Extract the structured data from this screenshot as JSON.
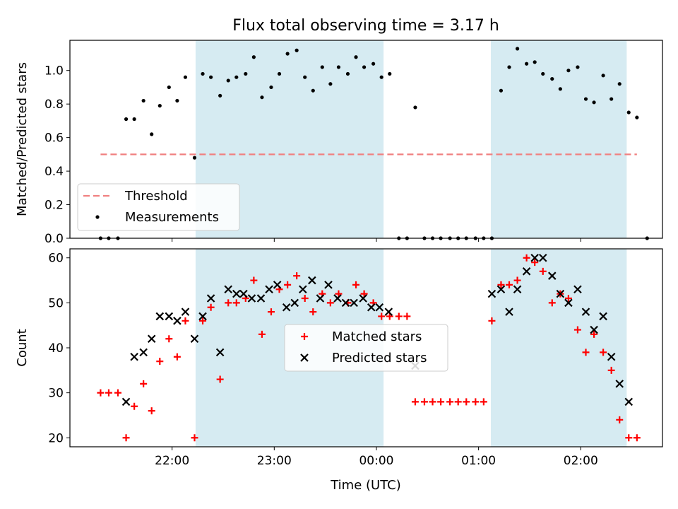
{
  "chart_data": {
    "type": "scatter",
    "title": "Flux total observing time = 3.17 h",
    "xlabel": "Time (UTC)",
    "x_unit": "hours after 00:00 UTC",
    "x_ticks": [
      {
        "value": -2,
        "label": "22:00"
      },
      {
        "value": -1,
        "label": "23:00"
      },
      {
        "value": 0,
        "label": "00:00"
      },
      {
        "value": 1,
        "label": "01:00"
      },
      {
        "value": 2,
        "label": "02:00"
      }
    ],
    "xlim": [
      -3.0,
      2.8
    ],
    "shaded_intervals": [
      [
        -1.77,
        0.07
      ],
      [
        1.12,
        2.45
      ]
    ],
    "shade_color": "#add8e6",
    "panels": [
      {
        "ylabel": "Matched/Predicted stars",
        "ylim": [
          0,
          1.18
        ],
        "y_ticks": [
          "0.0",
          "0.2",
          "0.4",
          "0.6",
          "0.8",
          "1.0"
        ],
        "y_tick_values": [
          0,
          0.2,
          0.4,
          0.6,
          0.8,
          1.0
        ],
        "threshold": {
          "name": "Threshold",
          "y": 0.5,
          "x_range": [
            -2.7,
            2.55
          ],
          "color": "#f08080"
        },
        "legend": {
          "placement": "lower-left",
          "entries": [
            "Threshold",
            "Measurements"
          ]
        },
        "series": [
          {
            "name": "Measurements",
            "color": "#000000",
            "marker": "dot",
            "points": [
              [
                -2.7,
                0.0
              ],
              [
                -2.62,
                0.0
              ],
              [
                -2.53,
                0.0
              ],
              [
                -2.45,
                0.71
              ],
              [
                -2.37,
                0.71
              ],
              [
                -2.28,
                0.82
              ],
              [
                -2.2,
                0.62
              ],
              [
                -2.12,
                0.79
              ],
              [
                -2.03,
                0.9
              ],
              [
                -1.95,
                0.82
              ],
              [
                -1.87,
                0.96
              ],
              [
                -1.78,
                0.48
              ],
              [
                -1.7,
                0.98
              ],
              [
                -1.62,
                0.96
              ],
              [
                -1.53,
                0.85
              ],
              [
                -1.45,
                0.94
              ],
              [
                -1.37,
                0.96
              ],
              [
                -1.28,
                0.98
              ],
              [
                -1.2,
                1.08
              ],
              [
                -1.12,
                0.84
              ],
              [
                -1.03,
                0.9
              ],
              [
                -0.95,
                0.98
              ],
              [
                -0.87,
                1.1
              ],
              [
                -0.78,
                1.12
              ],
              [
                -0.7,
                0.96
              ],
              [
                -0.62,
                0.88
              ],
              [
                -0.53,
                1.02
              ],
              [
                -0.45,
                0.92
              ],
              [
                -0.37,
                1.02
              ],
              [
                -0.28,
                0.98
              ],
              [
                -0.2,
                1.08
              ],
              [
                -0.12,
                1.02
              ],
              [
                -0.03,
                1.04
              ],
              [
                0.05,
                0.96
              ],
              [
                0.13,
                0.98
              ],
              [
                0.22,
                0.0
              ],
              [
                0.3,
                0.0
              ],
              [
                0.38,
                0.78
              ],
              [
                0.47,
                0.0
              ],
              [
                0.55,
                0.0
              ],
              [
                0.63,
                0.0
              ],
              [
                0.72,
                0.0
              ],
              [
                0.8,
                0.0
              ],
              [
                0.88,
                0.0
              ],
              [
                0.97,
                0.0
              ],
              [
                1.05,
                0.0
              ],
              [
                1.13,
                0.0
              ],
              [
                1.22,
                0.88
              ],
              [
                1.3,
                1.02
              ],
              [
                1.38,
                1.13
              ],
              [
                1.47,
                1.04
              ],
              [
                1.55,
                1.05
              ],
              [
                1.63,
                0.98
              ],
              [
                1.72,
                0.95
              ],
              [
                1.8,
                0.89
              ],
              [
                1.88,
                1.0
              ],
              [
                1.97,
                1.02
              ],
              [
                2.05,
                0.83
              ],
              [
                2.13,
                0.81
              ],
              [
                2.22,
                0.97
              ],
              [
                2.3,
                0.83
              ],
              [
                2.38,
                0.92
              ],
              [
                2.47,
                0.75
              ],
              [
                2.55,
                0.72
              ],
              [
                2.65,
                0.0
              ]
            ]
          }
        ]
      },
      {
        "ylabel": "Count",
        "ylim": [
          18,
          62
        ],
        "y_ticks": [
          "20",
          "30",
          "40",
          "50",
          "60"
        ],
        "y_tick_values": [
          20,
          30,
          40,
          50,
          60
        ],
        "legend": {
          "placement": "center",
          "entries": [
            "Matched stars",
            "Predicted stars"
          ]
        },
        "series": [
          {
            "name": "Matched stars",
            "color": "#ff0000",
            "marker": "plus",
            "points": [
              [
                -2.7,
                30
              ],
              [
                -2.62,
                30
              ],
              [
                -2.53,
                30
              ],
              [
                -2.45,
                20
              ],
              [
                -2.37,
                27
              ],
              [
                -2.28,
                32
              ],
              [
                -2.2,
                26
              ],
              [
                -2.12,
                37
              ],
              [
                -2.03,
                42
              ],
              [
                -1.95,
                38
              ],
              [
                -1.87,
                46
              ],
              [
                -1.78,
                20
              ],
              [
                -1.7,
                46
              ],
              [
                -1.62,
                49
              ],
              [
                -1.53,
                33
              ],
              [
                -1.45,
                50
              ],
              [
                -1.37,
                50
              ],
              [
                -1.28,
                51
              ],
              [
                -1.2,
                55
              ],
              [
                -1.12,
                43
              ],
              [
                -1.03,
                48
              ],
              [
                -0.95,
                53
              ],
              [
                -0.87,
                54
              ],
              [
                -0.78,
                56
              ],
              [
                -0.7,
                51
              ],
              [
                -0.62,
                48
              ],
              [
                -0.53,
                52
              ],
              [
                -0.45,
                50
              ],
              [
                -0.37,
                52
              ],
              [
                -0.28,
                50
              ],
              [
                -0.2,
                54
              ],
              [
                -0.12,
                52
              ],
              [
                -0.03,
                50
              ],
              [
                0.05,
                47
              ],
              [
                0.13,
                47
              ],
              [
                0.22,
                47
              ],
              [
                0.3,
                47
              ],
              [
                0.38,
                28
              ],
              [
                0.47,
                28
              ],
              [
                0.55,
                28
              ],
              [
                0.63,
                28
              ],
              [
                0.72,
                28
              ],
              [
                0.8,
                28
              ],
              [
                0.88,
                28
              ],
              [
                0.97,
                28
              ],
              [
                1.05,
                28
              ],
              [
                1.13,
                46
              ],
              [
                1.22,
                54
              ],
              [
                1.3,
                54
              ],
              [
                1.38,
                55
              ],
              [
                1.47,
                60
              ],
              [
                1.55,
                59
              ],
              [
                1.63,
                57
              ],
              [
                1.72,
                50
              ],
              [
                1.8,
                52
              ],
              [
                1.88,
                51
              ],
              [
                1.97,
                44
              ],
              [
                2.05,
                39
              ],
              [
                2.13,
                43
              ],
              [
                2.22,
                39
              ],
              [
                2.3,
                35
              ],
              [
                2.38,
                24
              ],
              [
                2.47,
                20
              ],
              [
                2.55,
                20
              ]
            ]
          },
          {
            "name": "Predicted stars",
            "color": "#000000",
            "marker": "x",
            "points": [
              [
                -2.45,
                28
              ],
              [
                -2.37,
                38
              ],
              [
                -2.28,
                39
              ],
              [
                -2.2,
                42
              ],
              [
                -2.12,
                47
              ],
              [
                -2.03,
                47
              ],
              [
                -1.95,
                46
              ],
              [
                -1.87,
                48
              ],
              [
                -1.78,
                42
              ],
              [
                -1.7,
                47
              ],
              [
                -1.62,
                51
              ],
              [
                -1.53,
                39
              ],
              [
                -1.45,
                53
              ],
              [
                -1.37,
                52
              ],
              [
                -1.3,
                52
              ],
              [
                -1.22,
                51
              ],
              [
                -1.13,
                51
              ],
              [
                -1.05,
                53
              ],
              [
                -0.97,
                54
              ],
              [
                -0.88,
                49
              ],
              [
                -0.8,
                50
              ],
              [
                -0.72,
                53
              ],
              [
                -0.63,
                55
              ],
              [
                -0.55,
                51
              ],
              [
                -0.47,
                54
              ],
              [
                -0.38,
                51
              ],
              [
                -0.3,
                50
              ],
              [
                -0.22,
                50
              ],
              [
                -0.13,
                51
              ],
              [
                -0.05,
                49
              ],
              [
                0.03,
                49
              ],
              [
                0.12,
                48
              ],
              [
                0.38,
                36
              ],
              [
                1.13,
                52
              ],
              [
                1.22,
                53
              ],
              [
                1.3,
                48
              ],
              [
                1.38,
                53
              ],
              [
                1.47,
                57
              ],
              [
                1.55,
                60
              ],
              [
                1.63,
                60
              ],
              [
                1.72,
                56
              ],
              [
                1.8,
                52
              ],
              [
                1.88,
                50
              ],
              [
                1.97,
                53
              ],
              [
                2.05,
                48
              ],
              [
                2.13,
                44
              ],
              [
                2.22,
                47
              ],
              [
                2.3,
                38
              ],
              [
                2.38,
                32
              ],
              [
                2.47,
                28
              ]
            ]
          }
        ]
      }
    ]
  }
}
